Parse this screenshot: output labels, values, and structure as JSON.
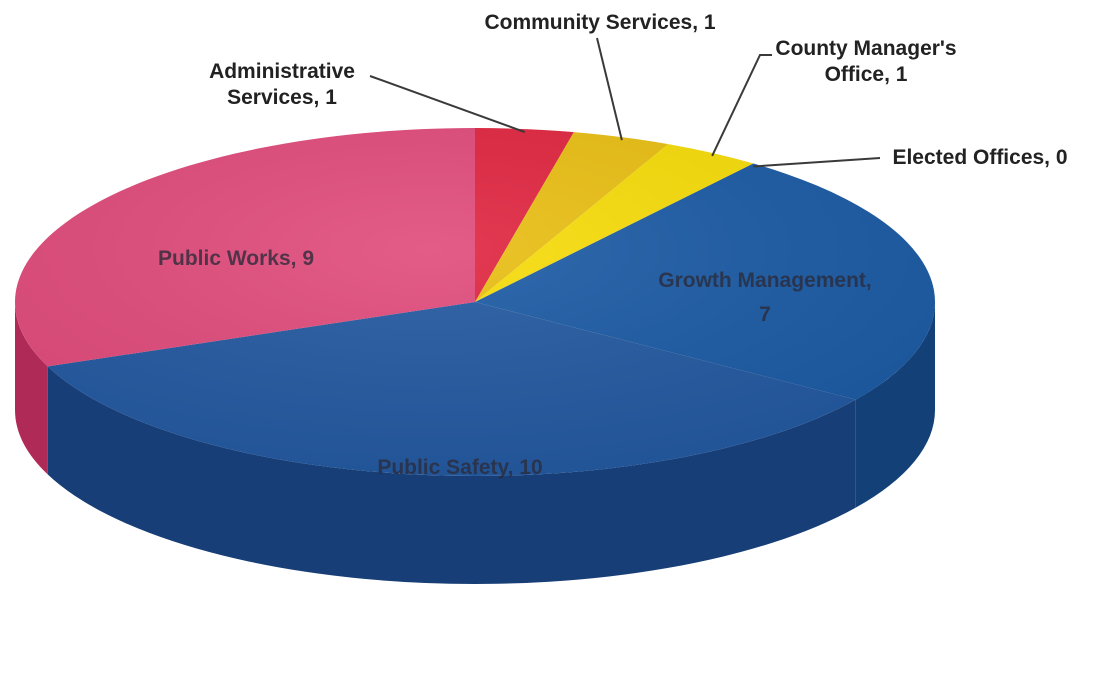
{
  "chart_data": {
    "type": "pie",
    "style": "3d",
    "title": "",
    "legend": "none",
    "labels_format": "{category}, {value}",
    "slices": [
      {
        "name": "Administrative Services",
        "value": 1,
        "color": "#e0243f",
        "side_color": "#a8142a"
      },
      {
        "name": "Community Services",
        "value": 1,
        "color": "#e9be12",
        "side_color": "#b38f08"
      },
      {
        "name": "County Manager's Office",
        "value": 1,
        "color": "#f7dc08",
        "side_color": "#bea906"
      },
      {
        "name": "Elected Offices",
        "value": 0,
        "color": "#1c5ca8",
        "side_color": "#12407a"
      },
      {
        "name": "Growth Management",
        "value": 7,
        "color": "#1b5aa4",
        "side_color": "#134177"
      },
      {
        "name": "Public Safety",
        "value": 10,
        "color": "#2258a0",
        "side_color": "#173e76"
      },
      {
        "name": "Public Works",
        "value": 9,
        "color": "#e04a7a",
        "side_color": "#b02a58"
      }
    ]
  }
}
